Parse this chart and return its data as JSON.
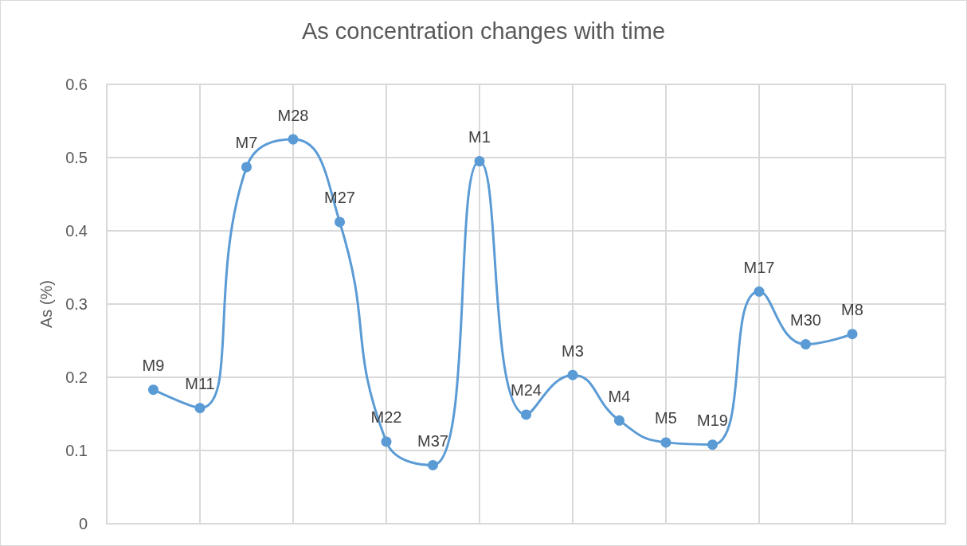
{
  "chart_data": {
    "type": "line",
    "title": "As concentration changes with time",
    "ylabel": "As (%)",
    "categories": [
      null,
      null,
      null,
      null,
      null,
      null,
      null,
      null,
      null,
      null,
      null,
      null,
      null,
      null,
      null,
      null
    ],
    "series": [
      {
        "color": "#5b9bd5",
        "values": [
          0.183,
          0.158,
          0.487,
          0.525,
          0.412,
          0.112,
          0.08,
          0.495,
          0.149,
          0.203,
          0.141,
          0.111,
          0.108,
          0.317,
          0.245,
          0.259
        ],
        "value_labels": [
          "M9",
          "M11",
          "M7",
          "M28",
          "M27",
          "M22",
          "M37",
          "M1",
          "M24",
          "M3",
          "M4",
          "M5",
          "M19",
          "M17",
          "M30",
          "M8"
        ]
      }
    ],
    "ylim": [
      0,
      0.6
    ],
    "yticks": [
      0,
      0.1,
      0.2,
      0.3,
      0.4,
      0.5,
      0.6
    ],
    "tick_labels": "y",
    "grid": true,
    "marker": "circle",
    "line_style": "solid"
  }
}
